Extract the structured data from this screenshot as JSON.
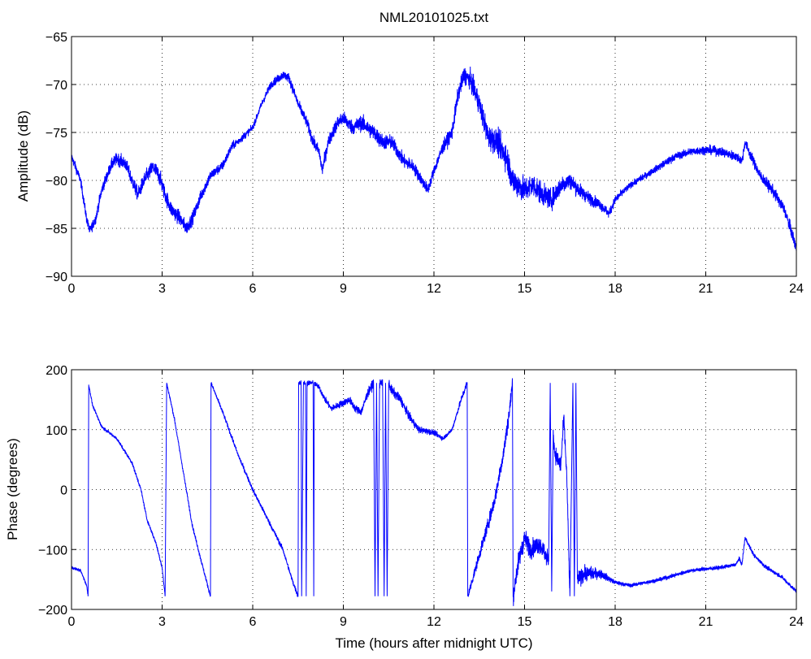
{
  "chart_data": [
    {
      "type": "line",
      "title": "NML20101025.txt",
      "xlabel": "",
      "ylabel": "Amplitude (dB)",
      "xlim": [
        0,
        24
      ],
      "ylim": [
        -90,
        -65
      ],
      "xticks": [
        "0",
        "3",
        "6",
        "9",
        "12",
        "15",
        "18",
        "21",
        "24"
      ],
      "yticks": [
        "-90",
        "-85",
        "-80",
        "-75",
        "-70",
        "-65"
      ],
      "grid": true,
      "color": "#0000ff",
      "series": [
        {
          "name": "Amplitude",
          "x": [
            0,
            0.3,
            0.5,
            0.6,
            0.8,
            1.0,
            1.3,
            1.5,
            1.8,
            2.0,
            2.2,
            2.4,
            2.7,
            2.9,
            3.1,
            3.3,
            3.6,
            3.8,
            4.0,
            4.3,
            4.6,
            5.0,
            5.3,
            5.6,
            6.0,
            6.3,
            6.6,
            7.0,
            7.2,
            7.5,
            7.8,
            8.0,
            8.2,
            8.3,
            8.5,
            8.8,
            9.0,
            9.3,
            9.6,
            10.0,
            10.3,
            10.6,
            10.8,
            11.0,
            11.3,
            11.6,
            11.8,
            12.0,
            12.3,
            12.6,
            12.8,
            13.0,
            13.2,
            13.5,
            13.8,
            14.1,
            14.4,
            14.6,
            15.0,
            15.3,
            15.6,
            15.9,
            16.2,
            16.5,
            16.8,
            17.2,
            17.5,
            17.8,
            18.0,
            18.5,
            19.0,
            19.5,
            20.0,
            20.5,
            21.0,
            21.5,
            22.0,
            22.2,
            22.3,
            22.5,
            22.8,
            23.2,
            23.6,
            23.8,
            24.0
          ],
          "y": [
            -77.5,
            -80,
            -84,
            -85.3,
            -84,
            -81,
            -78.5,
            -77.7,
            -78.3,
            -80,
            -81.5,
            -80,
            -78.6,
            -79.5,
            -81.5,
            -83,
            -84,
            -85,
            -84,
            -81.5,
            -79.5,
            -78.5,
            -76.5,
            -75.7,
            -74.5,
            -72,
            -70,
            -69,
            -69.3,
            -72,
            -74,
            -76,
            -77,
            -79,
            -76,
            -74,
            -73.5,
            -74.5,
            -74,
            -75,
            -76,
            -76,
            -77,
            -78,
            -78.5,
            -80,
            -81,
            -79,
            -76.5,
            -75,
            -71,
            -69,
            -69.5,
            -72,
            -75.5,
            -76,
            -77.5,
            -80,
            -81,
            -80.5,
            -81.5,
            -82,
            -80.5,
            -80,
            -81,
            -82,
            -82.5,
            -83.5,
            -82,
            -80.5,
            -79.5,
            -78.5,
            -77.5,
            -77,
            -76.8,
            -77,
            -77.5,
            -78,
            -76,
            -77.5,
            -79.5,
            -81,
            -83,
            -85,
            -87
          ],
          "noise": [
            [
              0,
              0.4
            ],
            [
              3,
              0.8
            ],
            [
              6,
              0.3
            ],
            [
              7.5,
              0.5
            ],
            [
              10,
              0.8
            ],
            [
              12,
              0.5
            ],
            [
              14.5,
              1.4
            ],
            [
              17.5,
              0.5
            ],
            [
              18.5,
              0.3
            ],
            [
              22.5,
              0.5
            ],
            [
              24,
              0.6
            ]
          ]
        }
      ]
    },
    {
      "type": "line",
      "title": "",
      "xlabel": "Time (hours after midnight UTC)",
      "ylabel": "Phase (degrees)",
      "xlim": [
        0,
        24
      ],
      "ylim": [
        -200,
        200
      ],
      "xticks": [
        "0",
        "3",
        "6",
        "9",
        "12",
        "15",
        "18",
        "21",
        "24"
      ],
      "yticks": [
        "-200",
        "-100",
        "0",
        "100",
        "200"
      ],
      "grid": true,
      "color": "#0000ff",
      "series": [
        {
          "name": "Phase",
          "x": [
            0,
            0.3,
            0.5,
            0.55,
            0.57,
            0.7,
            1.0,
            1.5,
            2.0,
            2.3,
            2.5,
            2.8,
            3.0,
            3.1,
            3.15,
            3.4,
            3.6,
            3.8,
            4.0,
            4.3,
            4.6,
            4.62,
            5.0,
            5.5,
            6.0,
            6.5,
            7.0,
            7.3,
            7.5,
            7.52,
            7.6,
            7.62,
            7.68,
            7.75,
            7.77,
            7.8,
            8.0,
            8.02,
            8.04,
            8.2,
            8.4,
            8.6,
            8.8,
            9.0,
            9.2,
            9.4,
            9.6,
            9.8,
            10.0,
            10.05,
            10.1,
            10.15,
            10.2,
            10.3,
            10.35,
            10.4,
            10.45,
            10.5,
            10.6,
            10.9,
            11.2,
            11.5,
            12.0,
            12.3,
            12.6,
            12.9,
            13.1,
            13.12,
            13.5,
            14.0,
            14.3,
            14.5,
            14.6,
            14.62,
            14.8,
            15.0,
            15.2,
            15.5,
            15.8,
            15.85,
            15.9,
            15.95,
            16.0,
            16.2,
            16.3,
            16.4,
            16.5,
            16.6,
            16.65,
            16.7,
            16.75,
            17.0,
            17.5,
            18.0,
            18.5,
            19.5,
            20.5,
            21.5,
            22.0,
            22.1,
            22.2,
            22.3,
            22.6,
            23.0,
            23.5,
            24.0
          ],
          "y": [
            -130,
            -135,
            -160,
            -178,
            175,
            140,
            105,
            85,
            45,
            0,
            -50,
            -90,
            -130,
            -178,
            178,
            120,
            60,
            0,
            -60,
            -120,
            -178,
            178,
            130,
            60,
            0,
            -50,
            -100,
            -150,
            -178,
            178,
            178,
            -178,
            178,
            178,
            -178,
            178,
            178,
            -178,
            178,
            170,
            150,
            135,
            140,
            145,
            150,
            135,
            130,
            160,
            178,
            -178,
            178,
            -178,
            178,
            178,
            -178,
            178,
            -178,
            178,
            165,
            150,
            120,
            100,
            95,
            85,
            100,
            150,
            178,
            -178,
            -110,
            -20,
            60,
            130,
            178,
            -178,
            -120,
            -80,
            -100,
            -90,
            -120,
            178,
            -170,
            100,
            60,
            40,
            120,
            20,
            -178,
            178,
            -178,
            178,
            -150,
            -140,
            -140,
            -155,
            -160,
            -150,
            -135,
            -130,
            -125,
            -115,
            -125,
            -80,
            -110,
            -130,
            -145,
            -170
          ],
          "noise": [
            [
              0,
              2
            ],
            [
              8,
              4
            ],
            [
              10.5,
              8
            ],
            [
              12.5,
              3
            ],
            [
              14.8,
              15
            ],
            [
              17,
              12
            ],
            [
              18,
              3
            ],
            [
              24,
              3
            ]
          ]
        }
      ]
    }
  ]
}
